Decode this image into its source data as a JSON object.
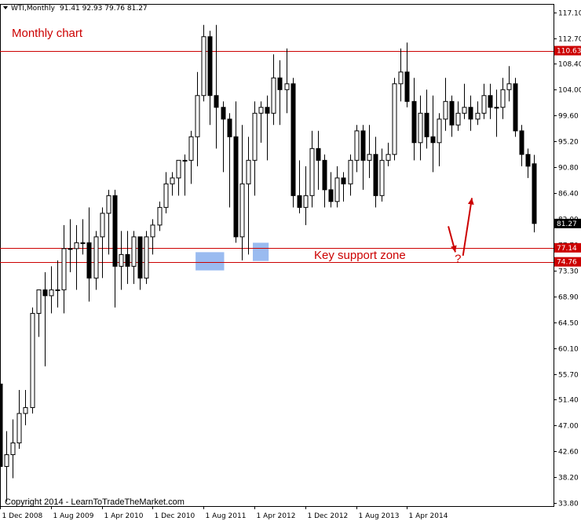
{
  "header": {
    "symbol": "WTI,Monthly",
    "ohlc": "91.41 92.93 79.76 81.27"
  },
  "annotations": {
    "title": "Monthly chart",
    "zone_label": "Key support zone",
    "question_mark": "?",
    "copyright": "Copyright 2014 - LearnToTradeTheMarket.com"
  },
  "colors": {
    "line": "#cc0000",
    "badge": "#cc0000",
    "zone_fill": "#8fb4ee",
    "bull": "#ffffff",
    "bear": "#000000"
  },
  "chart_data": {
    "type": "candlestick",
    "ylim": [
      33.8,
      117.1
    ],
    "yticks": [
      "117.10",
      "112.70",
      "108.40",
      "104.00",
      "99.60",
      "95.20",
      "90.80",
      "86.40",
      "82.00",
      "77.70",
      "73.30",
      "68.90",
      "64.50",
      "60.10",
      "55.70",
      "51.40",
      "47.00",
      "42.60",
      "38.20",
      "33.80"
    ],
    "xticks": [
      "1 Dec 2008",
      "1 Aug 2009",
      "1 Apr 2010",
      "1 Dec 2010",
      "1 Aug 2011",
      "1 Apr 2012",
      "1 Dec 2012",
      "1 Aug 2013",
      "1 Apr 2014"
    ],
    "xtick_index": [
      0,
      8,
      16,
      24,
      32,
      40,
      48,
      56,
      64
    ],
    "current_price": 81.27,
    "horizontal_lines": [
      {
        "value": 110.63,
        "label": "110.63"
      },
      {
        "value": 77.14,
        "label": "77.14"
      },
      {
        "value": 74.76,
        "label": "74.76"
      }
    ],
    "support_boxes": [
      {
        "from_index": 31,
        "to_index": 35,
        "low": 73.3,
        "high": 76.4
      },
      {
        "from_index": 40,
        "to_index": 42,
        "low": 74.9,
        "high": 78.0
      }
    ],
    "arrows": [
      {
        "from": [
          70.5,
          80.8
        ],
        "to": [
          71.6,
          76.4
        ]
      },
      {
        "from": [
          72.8,
          75.8
        ],
        "to": [
          74.2,
          85.6
        ]
      }
    ],
    "question_mark_pos": [
      71.5,
      75.3
    ],
    "candles": [
      {
        "o": 54,
        "h": 56,
        "l": 36,
        "c": 40
      },
      {
        "o": 40,
        "h": 46,
        "l": 34,
        "c": 42
      },
      {
        "o": 42,
        "h": 48,
        "l": 38,
        "c": 44
      },
      {
        "o": 44,
        "h": 53,
        "l": 43,
        "c": 49
      },
      {
        "o": 49,
        "h": 53,
        "l": 47,
        "c": 50
      },
      {
        "o": 50,
        "h": 67,
        "l": 49,
        "c": 66
      },
      {
        "o": 66,
        "h": 70,
        "l": 62,
        "c": 70
      },
      {
        "o": 70,
        "h": 73,
        "l": 57,
        "c": 69
      },
      {
        "o": 69,
        "h": 74,
        "l": 66,
        "c": 70
      },
      {
        "o": 70,
        "h": 75,
        "l": 67,
        "c": 70
      },
      {
        "o": 70,
        "h": 81,
        "l": 66,
        "c": 77
      },
      {
        "o": 77,
        "h": 82,
        "l": 73,
        "c": 77
      },
      {
        "o": 77,
        "h": 81,
        "l": 70,
        "c": 78
      },
      {
        "o": 78,
        "h": 82,
        "l": 76,
        "c": 78
      },
      {
        "o": 78,
        "h": 84,
        "l": 68,
        "c": 72
      },
      {
        "o": 72,
        "h": 80,
        "l": 70,
        "c": 79
      },
      {
        "o": 79,
        "h": 84,
        "l": 72,
        "c": 83
      },
      {
        "o": 83,
        "h": 87,
        "l": 76,
        "c": 86
      },
      {
        "o": 86,
        "h": 87,
        "l": 67,
        "c": 74
      },
      {
        "o": 74,
        "h": 80,
        "l": 70,
        "c": 76
      },
      {
        "o": 76,
        "h": 80,
        "l": 71,
        "c": 74
      },
      {
        "o": 74,
        "h": 80,
        "l": 71,
        "c": 79
      },
      {
        "o": 79,
        "h": 79,
        "l": 70,
        "c": 72
      },
      {
        "o": 72,
        "h": 80,
        "l": 71,
        "c": 79
      },
      {
        "o": 79,
        "h": 82,
        "l": 76,
        "c": 81
      },
      {
        "o": 81,
        "h": 85,
        "l": 80,
        "c": 84
      },
      {
        "o": 84,
        "h": 90,
        "l": 83,
        "c": 88
      },
      {
        "o": 88,
        "h": 90,
        "l": 86,
        "c": 89
      },
      {
        "o": 89,
        "h": 92,
        "l": 86,
        "c": 92
      },
      {
        "o": 92,
        "h": 93,
        "l": 86,
        "c": 92
      },
      {
        "o": 92,
        "h": 97,
        "l": 88,
        "c": 96
      },
      {
        "o": 96,
        "h": 107,
        "l": 91,
        "c": 103
      },
      {
        "o": 103,
        "h": 115,
        "l": 102,
        "c": 113
      },
      {
        "o": 113,
        "h": 114,
        "l": 98,
        "c": 103
      },
      {
        "o": 103,
        "h": 115,
        "l": 94,
        "c": 101
      },
      {
        "o": 101,
        "h": 102,
        "l": 90,
        "c": 99
      },
      {
        "o": 99,
        "h": 100,
        "l": 84,
        "c": 96
      },
      {
        "o": 96,
        "h": 102,
        "l": 78,
        "c": 79
      },
      {
        "o": 79,
        "h": 98,
        "l": 75,
        "c": 88
      },
      {
        "o": 88,
        "h": 96,
        "l": 76,
        "c": 92
      },
      {
        "o": 92,
        "h": 102,
        "l": 86,
        "c": 100
      },
      {
        "o": 100,
        "h": 102,
        "l": 95,
        "c": 101
      },
      {
        "o": 101,
        "h": 103,
        "l": 92,
        "c": 100
      },
      {
        "o": 100,
        "h": 110,
        "l": 98,
        "c": 106
      },
      {
        "o": 106,
        "h": 109,
        "l": 98,
        "c": 104
      },
      {
        "o": 104,
        "h": 111,
        "l": 100,
        "c": 105
      },
      {
        "o": 105,
        "h": 106,
        "l": 84,
        "c": 86
      },
      {
        "o": 86,
        "h": 92,
        "l": 83,
        "c": 84
      },
      {
        "o": 84,
        "h": 91,
        "l": 81,
        "c": 86
      },
      {
        "o": 86,
        "h": 97,
        "l": 84,
        "c": 94
      },
      {
        "o": 94,
        "h": 97,
        "l": 87,
        "c": 92
      },
      {
        "o": 92,
        "h": 93,
        "l": 84,
        "c": 87
      },
      {
        "o": 87,
        "h": 90,
        "l": 84,
        "c": 85
      },
      {
        "o": 85,
        "h": 91,
        "l": 84,
        "c": 89
      },
      {
        "o": 89,
        "h": 90,
        "l": 85,
        "c": 88
      },
      {
        "o": 88,
        "h": 93,
        "l": 86,
        "c": 92
      },
      {
        "o": 92,
        "h": 98,
        "l": 90,
        "c": 97
      },
      {
        "o": 97,
        "h": 98,
        "l": 87,
        "c": 92
      },
      {
        "o": 92,
        "h": 98,
        "l": 89,
        "c": 93
      },
      {
        "o": 93,
        "h": 96,
        "l": 84,
        "c": 86
      },
      {
        "o": 86,
        "h": 94,
        "l": 85,
        "c": 92
      },
      {
        "o": 92,
        "h": 95,
        "l": 91,
        "c": 93
      },
      {
        "o": 93,
        "h": 106,
        "l": 92,
        "c": 105
      },
      {
        "o": 105,
        "h": 111,
        "l": 102,
        "c": 107
      },
      {
        "o": 107,
        "h": 112,
        "l": 101,
        "c": 102
      },
      {
        "o": 102,
        "h": 106,
        "l": 92,
        "c": 95
      },
      {
        "o": 95,
        "h": 103,
        "l": 92,
        "c": 100
      },
      {
        "o": 100,
        "h": 104,
        "l": 94,
        "c": 96
      },
      {
        "o": 96,
        "h": 103,
        "l": 90,
        "c": 95
      },
      {
        "o": 95,
        "h": 100,
        "l": 91,
        "c": 99
      },
      {
        "o": 99,
        "h": 106,
        "l": 97,
        "c": 102
      },
      {
        "o": 102,
        "h": 103,
        "l": 96,
        "c": 98
      },
      {
        "o": 98,
        "h": 102,
        "l": 97,
        "c": 100
      },
      {
        "o": 100,
        "h": 105,
        "l": 99,
        "c": 101
      },
      {
        "o": 101,
        "h": 103,
        "l": 97,
        "c": 99
      },
      {
        "o": 99,
        "h": 102,
        "l": 98,
        "c": 100
      },
      {
        "o": 100,
        "h": 105,
        "l": 99,
        "c": 103
      },
      {
        "o": 103,
        "h": 105,
        "l": 99,
        "c": 101
      },
      {
        "o": 101,
        "h": 104,
        "l": 96,
        "c": 101
      },
      {
        "o": 101,
        "h": 106,
        "l": 99,
        "c": 104
      },
      {
        "o": 104,
        "h": 108,
        "l": 102,
        "c": 105
      },
      {
        "o": 105,
        "h": 106,
        "l": 96,
        "c": 97
      },
      {
        "o": 97,
        "h": 98,
        "l": 91,
        "c": 93
      },
      {
        "o": 93,
        "h": 94,
        "l": 89,
        "c": 91
      },
      {
        "o": 91.41,
        "h": 92.93,
        "l": 79.76,
        "c": 81.27
      }
    ]
  }
}
